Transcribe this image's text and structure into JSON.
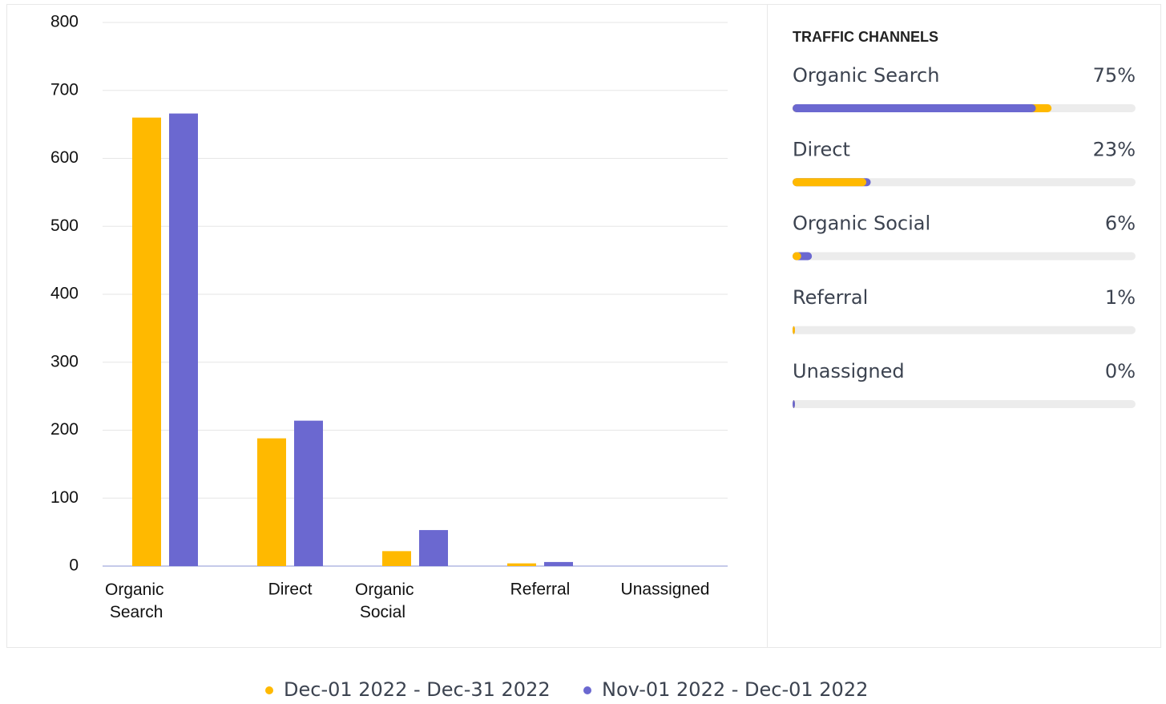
{
  "chart_data": {
    "type": "bar",
    "categories": [
      "Organic Search",
      "Direct",
      "Organic Social",
      "Referral",
      "Unassigned"
    ],
    "series": [
      {
        "name": "Dec-01 2022 - Dec-31 2022",
        "color": "#ffb900",
        "values": [
          660,
          188,
          22,
          4,
          0
        ]
      },
      {
        "name": "Nov-01 2022 - Dec-01 2022",
        "color": "#6b68d0",
        "values": [
          666,
          214,
          53,
          6,
          0
        ]
      }
    ],
    "ylim": [
      0,
      800
    ],
    "yticks": [
      0,
      100,
      200,
      300,
      400,
      500,
      600,
      700,
      800
    ],
    "grid": true
  },
  "panel": {
    "title": "TRAFFIC CHANNELS",
    "items": [
      {
        "name": "Organic Search",
        "percent": "75%"
      },
      {
        "name": "Direct",
        "percent": "23%"
      },
      {
        "name": "Organic Social",
        "percent": "6%"
      },
      {
        "name": "Referral",
        "percent": "1%"
      },
      {
        "name": "Unassigned",
        "percent": "0%"
      }
    ]
  }
}
